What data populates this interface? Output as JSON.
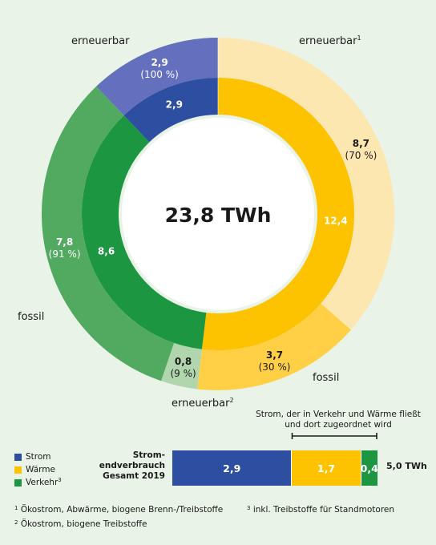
{
  "center_label": "23,8 TWh",
  "colors": {
    "strom_outer": "#6470bd",
    "strom_inner": "#2d4ea1",
    "waerme_outer_ren": "#fde7b0",
    "waerme_outer_fos": "#ffd046",
    "waerme_inner": "#fdc200",
    "verkehr_outer_fos": "#52a960",
    "verkehr_outer_ren": "#b1d6ad",
    "verkehr_inner": "#1c9641",
    "background": "#e9f3e7"
  },
  "labels": {
    "strom_ren": "erneuerbar",
    "waerme_ren": "erneuerbar",
    "waerme_ren_sup": "1",
    "waerme_fos": "fossil",
    "verkehr_fos": "fossil",
    "verkehr_ren": "erneuerbar",
    "verkehr_ren_sup": "2"
  },
  "chart_data": [
    {
      "type": "pie",
      "title": "",
      "total_label": "23,8 TWh",
      "inner_ring": [
        {
          "name": "Strom",
          "value": 2.9,
          "value_label": "2,9"
        },
        {
          "name": "Wärme",
          "value": 12.4,
          "value_label": "12,4"
        },
        {
          "name": "Verkehr",
          "value": 8.6,
          "value_label": "8,6"
        }
      ],
      "outer_ring": [
        {
          "group": "Strom",
          "name": "erneuerbar",
          "value": 2.9,
          "value_label": "2,9",
          "share_label": "(100 %)"
        },
        {
          "group": "Wärme",
          "name": "erneuerbar",
          "value": 8.7,
          "value_label": "8,7",
          "share_label": "(70 %)"
        },
        {
          "group": "Wärme",
          "name": "fossil",
          "value": 3.7,
          "value_label": "3,7",
          "share_label": "(30 %)"
        },
        {
          "group": "Verkehr",
          "name": "erneuerbar",
          "value": 0.8,
          "value_label": "0,8",
          "share_label": "(9 %)"
        },
        {
          "group": "Verkehr",
          "name": "fossil",
          "value": 7.8,
          "value_label": "7,8",
          "share_label": "(91 %)"
        }
      ]
    },
    {
      "type": "bar",
      "title": "Strom-endverbrauch Gesamt 2019",
      "categories": [
        "Strom",
        "Wärme",
        "Verkehr"
      ],
      "values": [
        2.9,
        1.7,
        0.4
      ],
      "value_labels": [
        "2,9",
        "1,7",
        "0,4"
      ],
      "total_label": "5,0 TWh",
      "annotation": "Strom, der in Verkehr und Wärme fließt und dort zugeordnet wird"
    }
  ],
  "bar": {
    "title_lines": [
      "Strom-",
      "endverbrauch",
      "Gesamt 2019"
    ],
    "total_label": "5,0 TWh",
    "bracket_lines": [
      "Strom, der in Verkehr und Wärme fließt",
      "und dort zugeordnet wird"
    ]
  },
  "legend": [
    {
      "label": "Strom",
      "sup": ""
    },
    {
      "label": "Wärme",
      "sup": ""
    },
    {
      "label": "Verkehr",
      "sup": "3"
    }
  ],
  "footnotes": {
    "f1_num": "1",
    "f1": "Ökostrom, Abwärme, biogene Brenn-/Treibstoffe",
    "f3_num": "3",
    "f3": "inkl. Treibstoffe für Standmotoren",
    "f2_num": "2",
    "f2": "Ökostrom, biogene Treibstoffe"
  }
}
